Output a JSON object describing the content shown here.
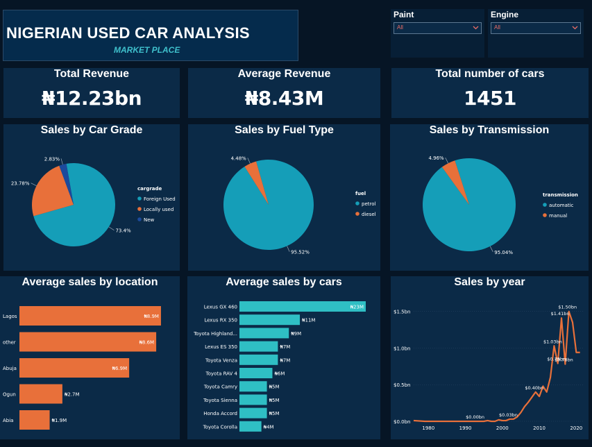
{
  "header": {
    "title": "NIGERIAN USED CAR ANALYSIS",
    "subtitle": "MARKET PLACE"
  },
  "slicers": [
    {
      "label": "Paint",
      "value": "All"
    },
    {
      "label": "Engine",
      "value": "All"
    }
  ],
  "kpis": {
    "total_revenue": {
      "label": "Total Revenue",
      "value": "₦12.23bn"
    },
    "average_revenue": {
      "label": "Average Revenue",
      "value": "₦8.43M"
    },
    "total_cars": {
      "label": "Total number of cars",
      "value": "1451"
    }
  },
  "colors": {
    "teal": "#159eb8",
    "orange": "#e8703a",
    "navy": "#1c4a9c",
    "bar_teal": "#2fbfc4",
    "bar_orange": "#e8703a",
    "line": "#e8703a"
  },
  "chart_data": [
    {
      "id": "grade",
      "type": "pie",
      "title": "Sales by Car Grade",
      "legend_title": "cargrade",
      "legend_position": "right",
      "labels": [
        "Foreign Used",
        "Locally used",
        "New"
      ],
      "values": [
        73.4,
        23.78,
        2.83
      ],
      "value_labels": [
        "73.4%",
        "23.78%",
        "2.83%"
      ],
      "colors": [
        "#159eb8",
        "#e8703a",
        "#1c4a9c"
      ]
    },
    {
      "id": "fuel",
      "type": "pie",
      "title": "Sales by Fuel Type",
      "legend_title": "fuel",
      "legend_position": "right",
      "labels": [
        "petrol",
        "diesel"
      ],
      "values": [
        95.52,
        4.48
      ],
      "value_labels": [
        "95.52%",
        "4.48%"
      ],
      "colors": [
        "#159eb8",
        "#e8703a"
      ]
    },
    {
      "id": "transmission",
      "type": "pie",
      "title": "Sales by Transmission",
      "legend_title": "transmission",
      "legend_position": "right",
      "labels": [
        "automatic",
        "manual"
      ],
      "values": [
        95.04,
        4.96
      ],
      "value_labels": [
        "95.04%",
        "4.96%"
      ],
      "colors": [
        "#159eb8",
        "#e8703a"
      ]
    },
    {
      "id": "location",
      "type": "bar",
      "orientation": "horizontal",
      "title": "Average sales by location",
      "categories": [
        "Lagos",
        "other",
        "Abuja",
        "Ogun",
        "Abia"
      ],
      "values": [
        8.9,
        8.6,
        6.9,
        2.7,
        1.9
      ],
      "value_labels": [
        "₦8.9M",
        "₦8.6M",
        "₦6.9M",
        "₦2.7M",
        "₦1.9M"
      ],
      "xlim": [
        0,
        9.6
      ]
    },
    {
      "id": "cars",
      "type": "bar",
      "orientation": "horizontal",
      "title": "Average sales by cars",
      "categories": [
        "Lexus GX 460",
        "Lexus RX 350",
        "Toyota Highland...",
        "Lexus ES 350",
        "Toyota Venza",
        "Toyota RAV 4",
        "Toyota Camry",
        "Toyota Sienna",
        "Honda Accord",
        "Toyota Corolla"
      ],
      "values": [
        23,
        11,
        9,
        7,
        7,
        6,
        5,
        5,
        5,
        4
      ],
      "value_labels": [
        "₦23M",
        "₦11M",
        "₦9M",
        "₦7M",
        "₦7M",
        "₦6M",
        "₦5M",
        "₦5M",
        "₦5M",
        "₦4M"
      ],
      "xlim": [
        0,
        23
      ]
    },
    {
      "id": "year",
      "type": "line",
      "title": "Sales by year",
      "xlabel": "",
      "ylabel": "",
      "xlim": [
        1976,
        2022
      ],
      "ylim": [
        0,
        1.62
      ],
      "xticks": [
        1980,
        1990,
        2000,
        2010,
        2020
      ],
      "yticks": [
        {
          "v": 0,
          "label": "$0.0bn"
        },
        {
          "v": 0.5,
          "label": "$0.5bn"
        },
        {
          "v": 1.0,
          "label": "$1.0bn"
        },
        {
          "v": 1.5,
          "label": "$1.5bn"
        }
      ],
      "x": [
        1976,
        1979,
        1981,
        1983,
        1985,
        1987,
        1989,
        1991,
        1993,
        1995,
        1996,
        1997,
        1998,
        1999,
        2000,
        2001,
        2002,
        2003,
        2004,
        2005,
        2006,
        2007,
        2008,
        2009,
        2010,
        2011,
        2012,
        2013,
        2014,
        2015,
        2016,
        2017,
        2018,
        2019,
        2020,
        2021
      ],
      "y": [
        0.01,
        0.0,
        0.0,
        0.0,
        0.0,
        0.0,
        0.0,
        0.0,
        0.0,
        0.0,
        0.01,
        0.0,
        0.0,
        0.02,
        0.01,
        0.01,
        0.03,
        0.03,
        0.06,
        0.12,
        0.2,
        0.26,
        0.33,
        0.4,
        0.34,
        0.48,
        0.4,
        0.6,
        1.03,
        0.79,
        1.41,
        0.78,
        1.5,
        1.35,
        0.94,
        0.94
      ],
      "point_labels": [
        {
          "x": 1993,
          "y": 0.0,
          "label": "$0.00bn"
        },
        {
          "x": 2002,
          "y": 0.03,
          "label": "$0.03bn"
        },
        {
          "x": 2009,
          "y": 0.4,
          "label": "$0.40bn"
        },
        {
          "x": 2014,
          "y": 1.03,
          "label": "$1.03bn"
        },
        {
          "x": 2015,
          "y": 0.79,
          "label": "$0.79bn"
        },
        {
          "x": 2016,
          "y": 1.41,
          "label": "$1.41bn"
        },
        {
          "x": 2017,
          "y": 0.78,
          "label": "$0.78bn"
        },
        {
          "x": 2018,
          "y": 1.5,
          "label": "$1.50bn"
        }
      ]
    }
  ]
}
